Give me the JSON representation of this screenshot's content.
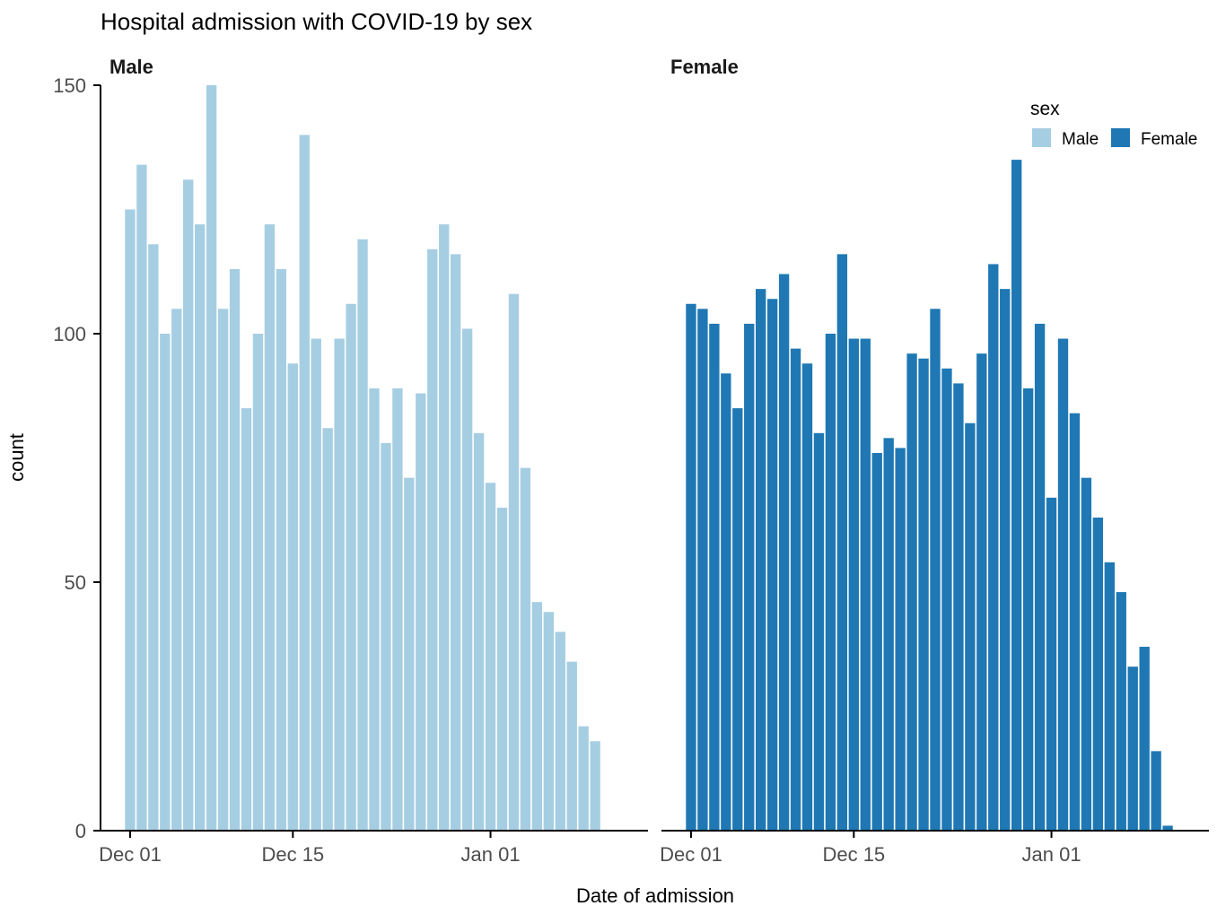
{
  "chart_data": {
    "type": "bar",
    "title": "Hospital admission with COVID-19 by sex",
    "xlabel": "Date of admission",
    "ylabel": "count",
    "ylim": [
      0,
      150
    ],
    "y_ticks": [
      "0",
      "50",
      "100",
      "150"
    ],
    "x_ticks": [
      {
        "label": "Dec 01",
        "date": "2020-12-01"
      },
      {
        "label": "Dec 15",
        "date": "2020-12-15"
      },
      {
        "label": "Jan 01",
        "date": "2021-01-01"
      }
    ],
    "x_range": [
      "2020-11-30",
      "2021-01-13"
    ],
    "grid": false,
    "legend": {
      "title": "sex",
      "placement": "top-right",
      "entries": [
        {
          "label": "Male",
          "color": "#a6cee3"
        },
        {
          "label": "Female",
          "color": "#1f78b4"
        }
      ]
    },
    "panels": [
      {
        "label": "Male",
        "color": "#a6cee3",
        "start_date": "2020-12-01",
        "values": [
          125,
          134,
          118,
          100,
          105,
          131,
          122,
          150,
          105,
          113,
          85,
          100,
          122,
          113,
          94,
          140,
          99,
          81,
          99,
          106,
          119,
          89,
          78,
          89,
          71,
          88,
          117,
          122,
          116,
          101,
          80,
          70,
          65,
          108,
          73,
          46,
          44,
          40,
          34,
          21,
          18
        ]
      },
      {
        "label": "Female",
        "color": "#1f78b4",
        "start_date": "2020-12-01",
        "values": [
          106,
          105,
          102,
          92,
          85,
          102,
          109,
          107,
          112,
          97,
          94,
          80,
          100,
          116,
          99,
          99,
          76,
          79,
          77,
          96,
          95,
          105,
          93,
          90,
          82,
          96,
          114,
          109,
          135,
          89,
          102,
          67,
          99,
          84,
          71,
          63,
          54,
          48,
          33,
          37,
          16,
          1
        ]
      }
    ]
  }
}
